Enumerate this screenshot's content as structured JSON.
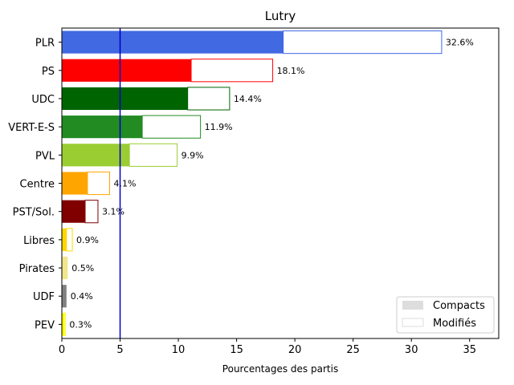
{
  "chart_data": {
    "type": "bar",
    "orientation": "horizontal",
    "stacked": true,
    "title": "Lutry",
    "xlabel": "Pourcentages des partis",
    "ylabel": "",
    "xlim": [
      0,
      37.5
    ],
    "x_ticks": [
      0,
      5,
      10,
      15,
      20,
      25,
      30,
      35
    ],
    "reference_line": {
      "x": 5,
      "color": "#0000cc"
    },
    "grid": false,
    "legend_position": "lower-right",
    "legend": [
      {
        "label": "Compacts",
        "style": "filled",
        "color": "#dddddd"
      },
      {
        "label": "Modifiés",
        "style": "outline",
        "color": "#dddddd"
      }
    ],
    "categories": [
      "PLR",
      "PS",
      "UDC",
      "VERT-E-S",
      "PVL",
      "Centre",
      "PST/Sol.",
      "Libres",
      "Pirates",
      "UDF",
      "PEV"
    ],
    "series": [
      {
        "name": "Compacts",
        "values": [
          19.0,
          11.1,
          10.8,
          6.9,
          5.8,
          2.2,
          2.0,
          0.4,
          0.5,
          0.4,
          0.2
        ]
      },
      {
        "name": "Modifiés",
        "values": [
          13.6,
          7.0,
          3.6,
          5.0,
          4.1,
          1.9,
          1.1,
          0.5,
          0.0,
          0.0,
          0.1
        ]
      }
    ],
    "totals": [
      32.6,
      18.1,
      14.4,
      11.9,
      9.9,
      4.1,
      3.1,
      0.9,
      0.5,
      0.4,
      0.3
    ],
    "total_labels": [
      "32.6%",
      "18.1%",
      "14.4%",
      "11.9%",
      "9.9%",
      "4.1%",
      "3.1%",
      "0.9%",
      "0.5%",
      "0.4%",
      "0.3%"
    ],
    "colors": [
      "#4169e1",
      "#ff0000",
      "#006400",
      "#228b22",
      "#9acd32",
      "#ffa500",
      "#800000",
      "#ffd700",
      "#f0e68c",
      "#808080",
      "#ffff00"
    ]
  }
}
